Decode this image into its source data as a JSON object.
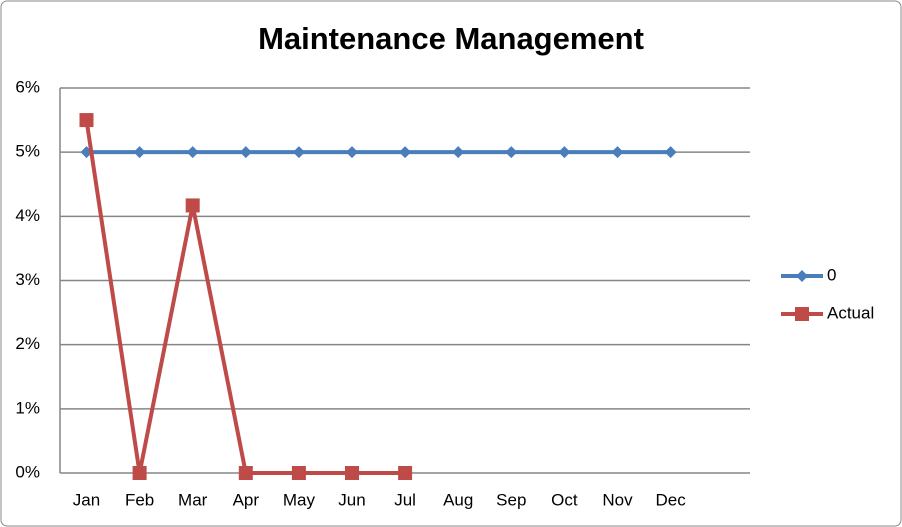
{
  "chart_data": {
    "type": "line",
    "title": "Maintenance Management",
    "categories": [
      "Jan",
      "Feb",
      "Mar",
      "Apr",
      "May",
      "Jun",
      "Jul",
      "Aug",
      "Sep",
      "Oct",
      "Nov",
      "Dec"
    ],
    "series": [
      {
        "name": "0",
        "color": "#4a7ebb",
        "marker": "diamond",
        "values": [
          5,
          5,
          5,
          5,
          5,
          5,
          5,
          5,
          5,
          5,
          5,
          5
        ]
      },
      {
        "name": "Actual",
        "color": "#be4b48",
        "marker": "square",
        "values": [
          5.5,
          0,
          4.17,
          0,
          0,
          0,
          0,
          null,
          null,
          null,
          null,
          null
        ]
      }
    ],
    "ylim": [
      0,
      6
    ],
    "yticks": [
      {
        "value": 0,
        "label": "0%"
      },
      {
        "value": 1,
        "label": "1%"
      },
      {
        "value": 2,
        "label": "2%"
      },
      {
        "value": 3,
        "label": "3%"
      },
      {
        "value": 4,
        "label": "4%"
      },
      {
        "value": 5,
        "label": "5%"
      },
      {
        "value": 6,
        "label": "6%"
      }
    ],
    "grid": true,
    "legend": "right"
  }
}
